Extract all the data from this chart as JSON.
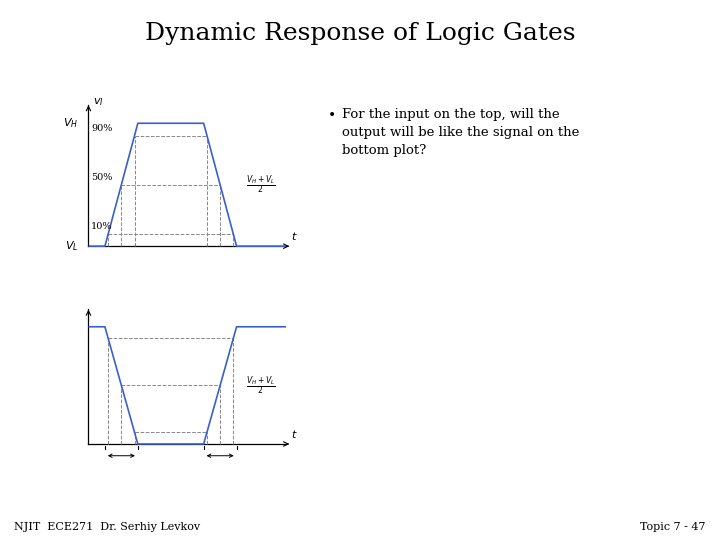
{
  "title": "Dynamic Response of Logic Gates",
  "title_fontsize": 18,
  "bg_color": "#ffffff",
  "text_color": "#000000",
  "line_color": "#3a5fcd",
  "dashed_color": "#888888",
  "bullet_text": "For the input on the top, will the\noutput will be like the signal on the\nbottom plot?",
  "footer_left": "NJIT  ECE271  Dr. Serhiy Levkov",
  "footer_right": "Topic 7 - 47",
  "top_plot": {
    "VH": 1.0,
    "VL": 0.0,
    "pct10": 0.1,
    "pct50": 0.5,
    "pct90": 0.9,
    "vH_label": "$V_H$",
    "vL_label": "$V_L$",
    "vi_label": "$v_I$",
    "t_label": "$t$",
    "midpoint_label": "$\\frac{V_H + V_L}{2}$"
  },
  "bottom_plot": {
    "VH": 1.0,
    "VL": 0.0,
    "pct10": 0.1,
    "pct50": 0.5,
    "pct90": 0.9,
    "t_label": "$t$",
    "midpoint_label": "$\\frac{V_H + V_L}{2}$"
  }
}
